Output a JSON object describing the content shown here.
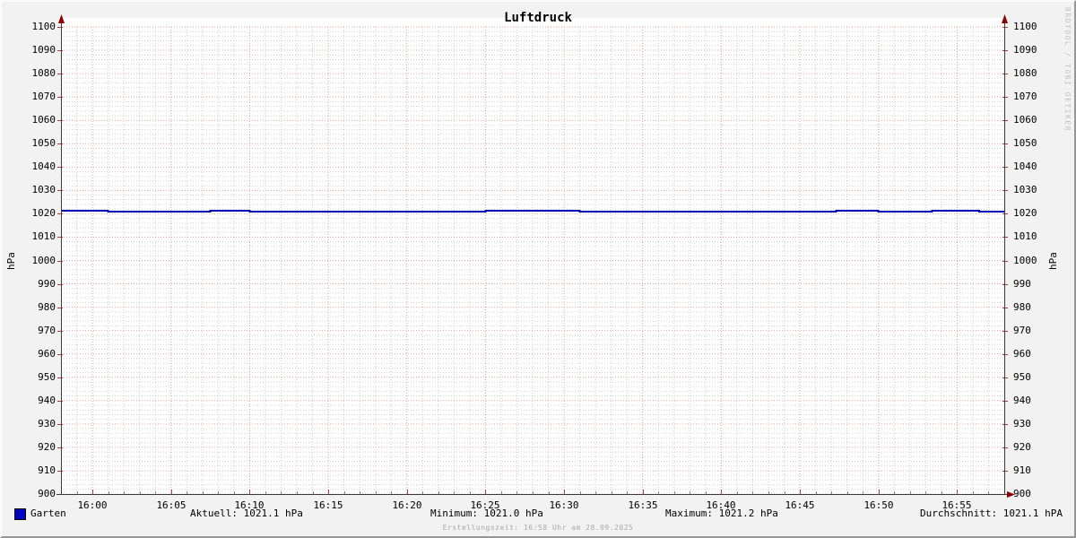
{
  "title": "Luftdruck",
  "watermark": "RRDTOOL / TOBI OETIKER",
  "footer": "Erstellungszeit: 16:58 Uhr am 28.09.2025",
  "legend": {
    "series_label": "Garten",
    "series_swatch_color": "#0000c0"
  },
  "stats": {
    "aktuell": "Aktuell: 1021.1 hPa",
    "minimum": "Minimum: 1021.0 hPa",
    "maximum": "Maximum: 1021.2 hPa",
    "durchschnitt": "Durchschnitt: 1021.1 hPA"
  },
  "colors": {
    "background": "#f2f2f2",
    "plot_background": "#ffffff",
    "grid_major": "#cc6666",
    "grid_minor": "#9a9a9a",
    "axis": "#3a3a3a",
    "arrow": "#8b0000",
    "tick_major": "#b04040",
    "tick_minor": "#888888",
    "line": "#0000b8"
  },
  "chart_data": {
    "type": "line",
    "title": "Luftdruck",
    "ylabel": "hPa",
    "ylabel_right": "hPa",
    "ylim": [
      900,
      1100
    ],
    "y_major_step": 10,
    "y_minor_step": 2,
    "y_tick_labels": [
      "900",
      "910",
      "920",
      "930",
      "940",
      "950",
      "960",
      "970",
      "980",
      "990",
      "1000",
      "1010",
      "1020",
      "1030",
      "1040",
      "1050",
      "1060",
      "1070",
      "1080",
      "1090",
      "1100"
    ],
    "x_start": "15:58",
    "x_end": "16:58",
    "x_span_minutes": 60,
    "x_tick_labels": [
      "16:00",
      "16:05",
      "16:10",
      "16:15",
      "16:20",
      "16:25",
      "16:30",
      "16:35",
      "16:40",
      "16:45",
      "16:50",
      "16:55"
    ],
    "x_first_tick_offset_min": 2,
    "x_major_step_min": 5,
    "x_minor_step_min": 1,
    "grid": true,
    "legend_position": "bottom",
    "series": [
      {
        "name": "Garten",
        "color": "#0000b8",
        "unit": "hPa",
        "current": 1021.1,
        "minimum": 1021.0,
        "maximum": 1021.2,
        "average": 1021.1,
        "step_points_min_value": [
          [
            0,
            1021.2
          ],
          [
            3,
            1021.1
          ],
          [
            9.5,
            1021.2
          ],
          [
            12,
            1021.1
          ],
          [
            27,
            1021.2
          ],
          [
            33,
            1021.1
          ],
          [
            49.3,
            1021.2
          ],
          [
            52,
            1021.1
          ],
          [
            55.4,
            1021.2
          ],
          [
            58.4,
            1021.1
          ],
          [
            60,
            1021.1
          ]
        ]
      }
    ]
  }
}
